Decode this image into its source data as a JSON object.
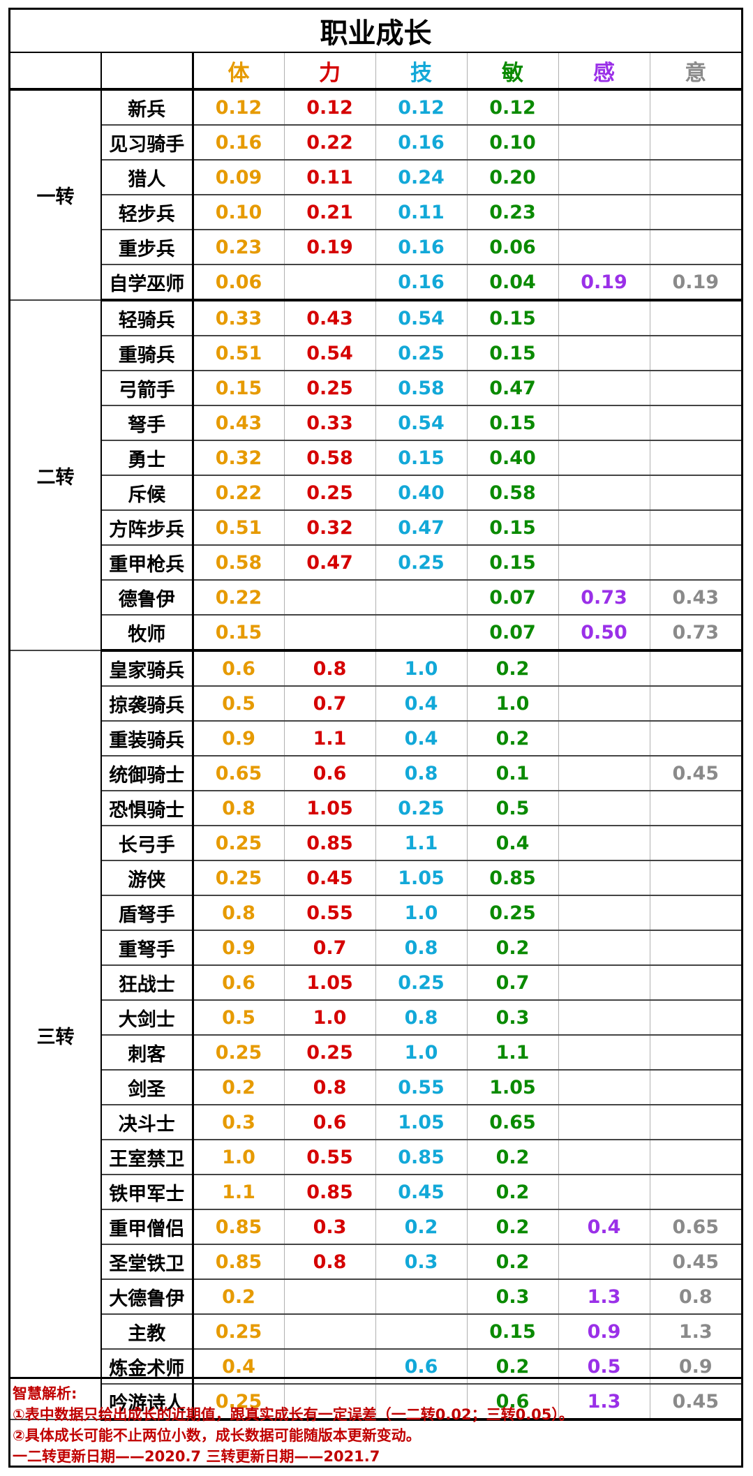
{
  "title": "职业成长",
  "headers": [
    "体",
    "力",
    "技",
    "敏",
    "感",
    "意"
  ],
  "colors": {
    "体": "#e69a00",
    "力": "#d50000",
    "技": "#12a8d8",
    "敏": "#0a8a00",
    "感": "#9a30e8",
    "意": "#8a8a8a"
  },
  "groups": [
    {
      "name": "一转",
      "rows": [
        {
          "job": "新兵",
          "v": [
            "0.12",
            "0.12",
            "0.12",
            "0.12",
            "",
            ""
          ]
        },
        {
          "job": "见习骑手",
          "v": [
            "0.16",
            "0.22",
            "0.16",
            "0.10",
            "",
            ""
          ]
        },
        {
          "job": "猎人",
          "v": [
            "0.09",
            "0.11",
            "0.24",
            "0.20",
            "",
            ""
          ]
        },
        {
          "job": "轻步兵",
          "v": [
            "0.10",
            "0.21",
            "0.11",
            "0.23",
            "",
            ""
          ]
        },
        {
          "job": "重步兵",
          "v": [
            "0.23",
            "0.19",
            "0.16",
            "0.06",
            "",
            ""
          ]
        },
        {
          "job": "自学巫师",
          "v": [
            "0.06",
            "",
            "0.16",
            "0.04",
            "0.19",
            "0.19"
          ]
        }
      ]
    },
    {
      "name": "二转",
      "rows": [
        {
          "job": "轻骑兵",
          "v": [
            "0.33",
            "0.43",
            "0.54",
            "0.15",
            "",
            ""
          ]
        },
        {
          "job": "重骑兵",
          "v": [
            "0.51",
            "0.54",
            "0.25",
            "0.15",
            "",
            ""
          ]
        },
        {
          "job": "弓箭手",
          "v": [
            "0.15",
            "0.25",
            "0.58",
            "0.47",
            "",
            ""
          ]
        },
        {
          "job": "弩手",
          "v": [
            "0.43",
            "0.33",
            "0.54",
            "0.15",
            "",
            ""
          ]
        },
        {
          "job": "勇士",
          "v": [
            "0.32",
            "0.58",
            "0.15",
            "0.40",
            "",
            ""
          ]
        },
        {
          "job": "斥候",
          "v": [
            "0.22",
            "0.25",
            "0.40",
            "0.58",
            "",
            ""
          ]
        },
        {
          "job": "方阵步兵",
          "v": [
            "0.51",
            "0.32",
            "0.47",
            "0.15",
            "",
            ""
          ]
        },
        {
          "job": "重甲枪兵",
          "v": [
            "0.58",
            "0.47",
            "0.25",
            "0.15",
            "",
            ""
          ]
        },
        {
          "job": "德鲁伊",
          "v": [
            "0.22",
            "",
            "",
            "0.07",
            "0.73",
            "0.43"
          ]
        },
        {
          "job": "牧师",
          "v": [
            "0.15",
            "",
            "",
            "0.07",
            "0.50",
            "0.73"
          ]
        }
      ]
    },
    {
      "name": "三转",
      "rows": [
        {
          "job": "皇家骑兵",
          "v": [
            "0.6",
            "0.8",
            "1.0",
            "0.2",
            "",
            ""
          ]
        },
        {
          "job": "掠袭骑兵",
          "v": [
            "0.5",
            "0.7",
            "0.4",
            "1.0",
            "",
            ""
          ]
        },
        {
          "job": "重装骑兵",
          "v": [
            "0.9",
            "1.1",
            "0.4",
            "0.2",
            "",
            ""
          ]
        },
        {
          "job": "统御骑士",
          "v": [
            "0.65",
            "0.6",
            "0.8",
            "0.1",
            "",
            "0.45"
          ]
        },
        {
          "job": "恐惧骑士",
          "v": [
            "0.8",
            "1.05",
            "0.25",
            "0.5",
            "",
            ""
          ]
        },
        {
          "job": "长弓手",
          "v": [
            "0.25",
            "0.85",
            "1.1",
            "0.4",
            "",
            ""
          ]
        },
        {
          "job": "游侠",
          "v": [
            "0.25",
            "0.45",
            "1.05",
            "0.85",
            "",
            ""
          ]
        },
        {
          "job": "盾弩手",
          "v": [
            "0.8",
            "0.55",
            "1.0",
            "0.25",
            "",
            ""
          ]
        },
        {
          "job": "重弩手",
          "v": [
            "0.9",
            "0.7",
            "0.8",
            "0.2",
            "",
            ""
          ]
        },
        {
          "job": "狂战士",
          "v": [
            "0.6",
            "1.05",
            "0.25",
            "0.7",
            "",
            ""
          ]
        },
        {
          "job": "大剑士",
          "v": [
            "0.5",
            "1.0",
            "0.8",
            "0.3",
            "",
            ""
          ]
        },
        {
          "job": "刺客",
          "v": [
            "0.25",
            "0.25",
            "1.0",
            "1.1",
            "",
            ""
          ]
        },
        {
          "job": "剑圣",
          "v": [
            "0.2",
            "0.8",
            "0.55",
            "1.05",
            "",
            ""
          ]
        },
        {
          "job": "决斗士",
          "v": [
            "0.3",
            "0.6",
            "1.05",
            "0.65",
            "",
            ""
          ]
        },
        {
          "job": "王室禁卫",
          "v": [
            "1.0",
            "0.55",
            "0.85",
            "0.2",
            "",
            ""
          ]
        },
        {
          "job": "铁甲军士",
          "v": [
            "1.1",
            "0.85",
            "0.45",
            "0.2",
            "",
            ""
          ]
        },
        {
          "job": "重甲僧侣",
          "v": [
            "0.85",
            "0.3",
            "0.2",
            "0.2",
            "0.4",
            "0.65"
          ]
        },
        {
          "job": "圣堂铁卫",
          "v": [
            "0.85",
            "0.8",
            "0.3",
            "0.2",
            "",
            "0.45"
          ]
        },
        {
          "job": "大德鲁伊",
          "v": [
            "0.2",
            "",
            "",
            "0.3",
            "1.3",
            "0.8"
          ]
        },
        {
          "job": "主教",
          "v": [
            "0.25",
            "",
            "",
            "0.15",
            "0.9",
            "1.3"
          ]
        },
        {
          "job": "炼金术师",
          "v": [
            "0.4",
            "",
            "0.6",
            "0.2",
            "0.5",
            "0.9"
          ]
        },
        {
          "job": "吟游诗人",
          "v": [
            "0.25",
            "",
            "",
            "0.6",
            "1.3",
            "0.45"
          ]
        }
      ]
    }
  ],
  "notes": [
    "智慧解析:",
    "①表中数据只给出成长的近期值，跟真实成长有一定误差（一二转0.02；三转0.05）。",
    "②具体成长可能不止两位小数，成长数据可能随版本更新变动。",
    "一二转更新日期——2020.7 三转更新日期——2021.7"
  ]
}
